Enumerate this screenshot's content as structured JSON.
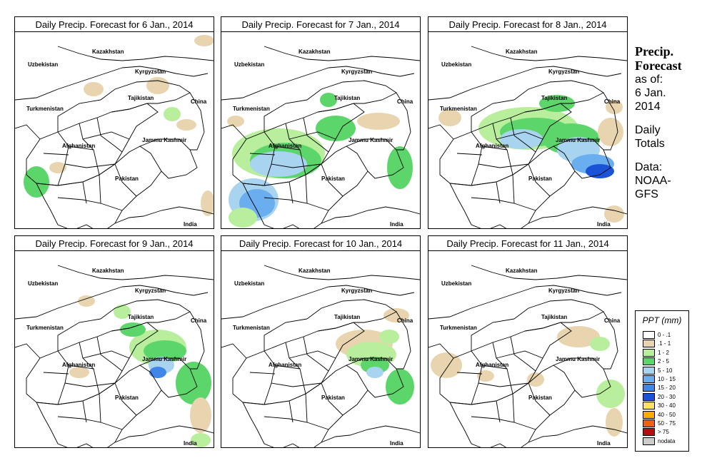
{
  "panels": [
    {
      "title": "Daily Precip. Forecast for  6 Jan., 2014"
    },
    {
      "title": "Daily Precip. Forecast for  7 Jan., 2014"
    },
    {
      "title": "Daily Precip. Forecast for  8 Jan., 2014"
    },
    {
      "title": "Daily Precip. Forecast for  9 Jan., 2014"
    },
    {
      "title": "Daily Precip. Forecast for  10 Jan., 2014"
    },
    {
      "title": "Daily Precip. Forecast for  11 Jan., 2014"
    }
  ],
  "map_labels": [
    "Kazakhstan",
    "Uzbekistan",
    "Kyrgyzstan",
    "Tajikistan",
    "Turkmenistan",
    "China",
    "Afghanistan",
    "Jammu Kashmir",
    "Pakistan",
    "India"
  ],
  "sidebar": {
    "title_line1": "Precip.",
    "title_line2": "Forecast",
    "asof": "as of:",
    "date_line1": "6 Jan.",
    "date_line2": "2014",
    "totals_line1": "Daily",
    "totals_line2": "Totals",
    "data_line1": "Data:",
    "data_line2": "NOAA-",
    "data_line3": "GFS"
  },
  "legend": {
    "title": "PPT (mm)",
    "items": [
      {
        "label": "0 - .1",
        "color": "#ffffff"
      },
      {
        "label": ".1 - 1",
        "color": "#e8d5b0"
      },
      {
        "label": "1 - 2",
        "color": "#b8ee9c"
      },
      {
        "label": "2 - 5",
        "color": "#5cd66a"
      },
      {
        "label": "5 - 10",
        "color": "#a8d4f0"
      },
      {
        "label": "10 - 15",
        "color": "#6aaef0"
      },
      {
        "label": "15 - 20",
        "color": "#3f86e8"
      },
      {
        "label": "20 - 30",
        "color": "#1a52d8"
      },
      {
        "label": "30 - 40",
        "color": "#ffe066"
      },
      {
        "label": "40 - 50",
        "color": "#ffaa00"
      },
      {
        "label": "50 - 75",
        "color": "#f06018"
      },
      {
        "label": "> 75",
        "color": "#b01010"
      },
      {
        "label": "nodata",
        "color": "#cccccc"
      }
    ]
  }
}
